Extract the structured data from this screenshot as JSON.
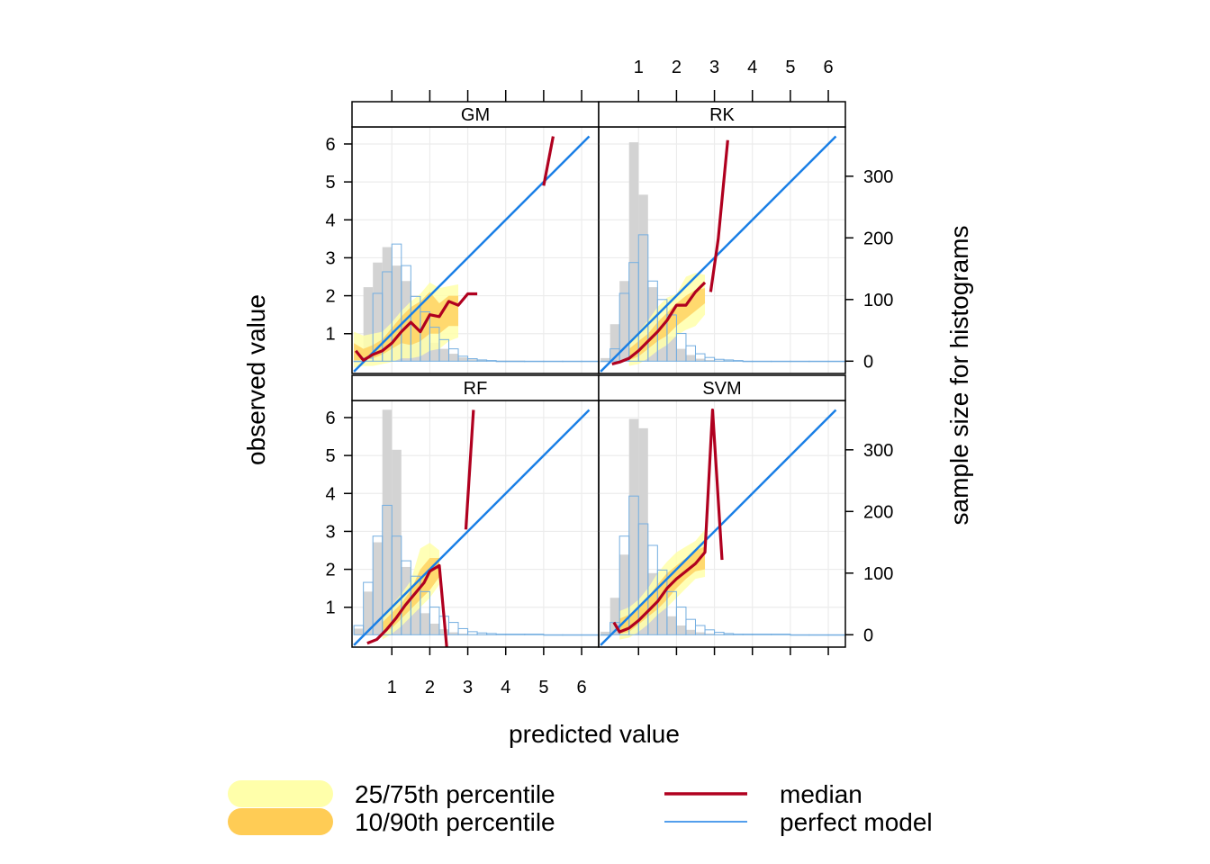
{
  "colors": {
    "median": "#b0001f",
    "perfect_model": "#1a7fe6",
    "band_25_75": "#ffffaa",
    "band_10_90": "#ffcc55",
    "hist_observed_fill": "#d3d3d3",
    "hist_predicted_stroke": "#74aee0",
    "strip_bg": "#ffffff",
    "grid": "#ececec"
  },
  "chart_data": {
    "type": "line",
    "xlabel": "predicted value",
    "ylabel": "observed value",
    "y2label": "sample size for histograms",
    "xlim": [
      -0.05,
      6.45
    ],
    "ylim": [
      -0.05,
      6.45
    ],
    "y2lim": [
      -20,
      380
    ],
    "xticks": [
      "1",
      "2",
      "3",
      "4",
      "5",
      "6"
    ],
    "xtick_values": [
      1,
      2,
      3,
      4,
      5,
      6
    ],
    "yticks": [
      "1",
      "2",
      "3",
      "4",
      "5",
      "6"
    ],
    "ytick_values": [
      1,
      2,
      3,
      4,
      5,
      6
    ],
    "y2ticks": [
      "0",
      "100",
      "200",
      "300"
    ],
    "y2tick_values": [
      0,
      100,
      200,
      300
    ],
    "grid": true,
    "legend": {
      "position": "bottom",
      "items": [
        {
          "label": "25/75th percentile",
          "kind": "band_25_75"
        },
        {
          "label": "10/90th percentile",
          "kind": "band_10_90"
        },
        {
          "label": "median",
          "kind": "median"
        },
        {
          "label": "perfect model",
          "kind": "perfect_model"
        }
      ]
    },
    "hist_bins": [
      0,
      0.25,
      0.5,
      0.75,
      1.0,
      1.25,
      1.5,
      1.75,
      2.0,
      2.25,
      2.5,
      2.75,
      3.0,
      3.25,
      3.5,
      3.75,
      4.0,
      4.5,
      5.0,
      5.5,
      6.0,
      6.45
    ],
    "panels": [
      {
        "name": "GM",
        "hist_observed": [
          15,
          120,
          160,
          185,
          155,
          130,
          80,
          50,
          30,
          20,
          12,
          6,
          3,
          2,
          1,
          1,
          1,
          0,
          0,
          0,
          0
        ],
        "hist_predicted": [
          0,
          5,
          110,
          145,
          190,
          155,
          105,
          80,
          55,
          35,
          20,
          8,
          4,
          2,
          1,
          0,
          0,
          0,
          0,
          0,
          0
        ],
        "band_x": [
          0,
          0.25,
          0.5,
          0.75,
          1.0,
          1.25,
          1.5,
          1.75,
          2.0,
          2.25,
          2.5,
          2.75
        ],
        "band_outer_low": [
          0.1,
          0.15,
          0.15,
          0.2,
          0.25,
          0.35,
          0.35,
          0.4,
          0.55,
          0.6,
          0.8,
          0.9
        ],
        "band_outer_high": [
          1.05,
          0.95,
          1.0,
          1.05,
          1.3,
          1.6,
          1.85,
          2.05,
          2.35,
          2.2,
          2.25,
          2.3
        ],
        "band_inner_low": [
          0.3,
          0.3,
          0.35,
          0.45,
          0.6,
          0.75,
          0.7,
          0.8,
          1.0,
          1.0,
          1.2,
          1.2
        ],
        "band_inner_high": [
          0.75,
          0.6,
          0.7,
          0.85,
          1.15,
          1.45,
          1.7,
          1.85,
          2.1,
          1.8,
          2.0,
          2.0
        ],
        "median_segments": [
          [
            [
              0.05,
              0.55
            ],
            [
              0.25,
              0.3
            ],
            [
              0.5,
              0.45
            ],
            [
              0.75,
              0.55
            ],
            [
              1.0,
              0.75
            ],
            [
              1.25,
              1.05
            ],
            [
              1.5,
              1.3
            ],
            [
              1.75,
              1.05
            ],
            [
              2.0,
              1.5
            ],
            [
              2.25,
              1.45
            ],
            [
              2.5,
              1.85
            ],
            [
              2.75,
              1.75
            ],
            [
              3.0,
              2.05
            ],
            [
              3.25,
              2.05
            ]
          ],
          [
            [
              5.0,
              4.9
            ],
            [
              5.25,
              6.2
            ]
          ]
        ]
      },
      {
        "name": "RK",
        "hist_observed": [
          5,
          60,
          130,
          355,
          270,
          120,
          70,
          40,
          20,
          10,
          4,
          2,
          1,
          1,
          0,
          0,
          0,
          0,
          0,
          0,
          0
        ],
        "hist_predicted": [
          0,
          20,
          110,
          160,
          205,
          130,
          100,
          75,
          45,
          25,
          12,
          6,
          3,
          2,
          1,
          0,
          0,
          0,
          0,
          0,
          0
        ],
        "band_x": [
          0.75,
          1.0,
          1.25,
          1.5,
          1.75,
          2.0,
          2.25,
          2.5,
          2.75
        ],
        "band_outer_low": [
          0.15,
          0.2,
          0.35,
          0.55,
          0.7,
          0.95,
          1.1,
          1.2,
          1.5
        ],
        "band_outer_high": [
          0.8,
          1.05,
          1.35,
          1.7,
          1.95,
          2.05,
          2.5,
          2.6,
          2.55
        ],
        "band_inner_low": [
          0.3,
          0.4,
          0.6,
          0.8,
          0.95,
          1.2,
          1.4,
          1.6,
          1.8
        ],
        "band_inner_high": [
          0.6,
          0.8,
          1.0,
          1.3,
          1.55,
          1.8,
          2.0,
          2.15,
          2.2
        ],
        "median_segments": [
          [
            [
              0.3,
              0.2
            ],
            [
              0.5,
              0.25
            ],
            [
              0.75,
              0.35
            ],
            [
              1.0,
              0.55
            ],
            [
              1.25,
              0.8
            ],
            [
              1.5,
              1.05
            ],
            [
              1.75,
              1.35
            ],
            [
              2.0,
              1.75
            ],
            [
              2.25,
              1.75
            ],
            [
              2.5,
              2.1
            ],
            [
              2.75,
              2.35
            ]
          ],
          [
            [
              2.9,
              2.1
            ],
            [
              3.1,
              3.5
            ],
            [
              3.35,
              6.1
            ]
          ]
        ]
      },
      {
        "name": "RF",
        "hist_observed": [
          10,
          70,
          150,
          365,
          300,
          110,
          60,
          35,
          18,
          9,
          4,
          2,
          1,
          1,
          0,
          0,
          0,
          0,
          0,
          0,
          0
        ],
        "hist_predicted": [
          15,
          85,
          160,
          210,
          160,
          120,
          95,
          70,
          45,
          30,
          20,
          10,
          5,
          3,
          2,
          1,
          1,
          1,
          0,
          0,
          0
        ],
        "band_x": [
          0.75,
          1.0,
          1.25,
          1.5,
          1.75,
          2.0,
          2.25
        ],
        "band_outer_low": [
          0.15,
          0.3,
          0.5,
          0.75,
          1.0,
          1.25,
          1.6
        ],
        "band_outer_high": [
          0.8,
          1.05,
          1.35,
          1.7,
          2.55,
          2.7,
          2.5
        ],
        "band_inner_low": [
          0.3,
          0.45,
          0.7,
          0.95,
          1.2,
          1.45,
          1.8
        ],
        "band_inner_high": [
          0.6,
          0.85,
          1.1,
          1.45,
          2.0,
          2.3,
          2.3
        ],
        "median_segments": [
          [
            [
              0.35,
              0.05
            ],
            [
              0.6,
              0.15
            ],
            [
              0.85,
              0.4
            ],
            [
              1.1,
              0.7
            ],
            [
              1.35,
              1.05
            ],
            [
              1.6,
              1.35
            ],
            [
              1.85,
              1.65
            ],
            [
              2.0,
              1.95
            ],
            [
              2.25,
              2.1
            ],
            [
              2.45,
              -0.1
            ]
          ],
          [
            [
              2.95,
              3.05
            ],
            [
              3.15,
              6.2
            ]
          ]
        ]
      },
      {
        "name": "SVM",
        "hist_observed": [
          5,
          60,
          130,
          350,
          335,
          100,
          55,
          30,
          15,
          8,
          4,
          2,
          1,
          1,
          0,
          0,
          0,
          0,
          0,
          0,
          0
        ],
        "hist_predicted": [
          0,
          20,
          160,
          225,
          180,
          145,
          105,
          70,
          45,
          25,
          15,
          8,
          4,
          2,
          1,
          1,
          1,
          1,
          0,
          0,
          0
        ],
        "band_x": [
          0.5,
          0.75,
          1.0,
          1.25,
          1.5,
          1.75,
          2.0,
          2.25,
          2.5,
          2.75
        ],
        "band_outer_low": [
          0.15,
          0.2,
          0.35,
          0.55,
          0.8,
          1.0,
          1.25,
          1.5,
          1.75,
          1.8
        ],
        "band_outer_high": [
          0.9,
          1.0,
          1.2,
          1.5,
          1.9,
          2.2,
          2.45,
          2.6,
          2.75,
          3.05
        ],
        "band_inner_low": [
          0.3,
          0.35,
          0.55,
          0.75,
          0.95,
          1.2,
          1.5,
          1.75,
          1.95,
          2.0
        ],
        "band_inner_high": [
          0.7,
          0.8,
          1.0,
          1.25,
          1.6,
          1.9,
          2.1,
          2.3,
          2.5,
          2.6
        ],
        "median_segments": [
          [
            [
              0.35,
              0.6
            ],
            [
              0.5,
              0.35
            ],
            [
              0.75,
              0.45
            ],
            [
              1.0,
              0.65
            ],
            [
              1.25,
              0.9
            ],
            [
              1.5,
              1.15
            ],
            [
              1.75,
              1.5
            ],
            [
              2.0,
              1.75
            ],
            [
              2.25,
              1.95
            ],
            [
              2.5,
              2.15
            ],
            [
              2.75,
              2.45
            ],
            [
              2.95,
              6.2
            ],
            [
              3.2,
              2.25
            ]
          ]
        ]
      }
    ]
  }
}
